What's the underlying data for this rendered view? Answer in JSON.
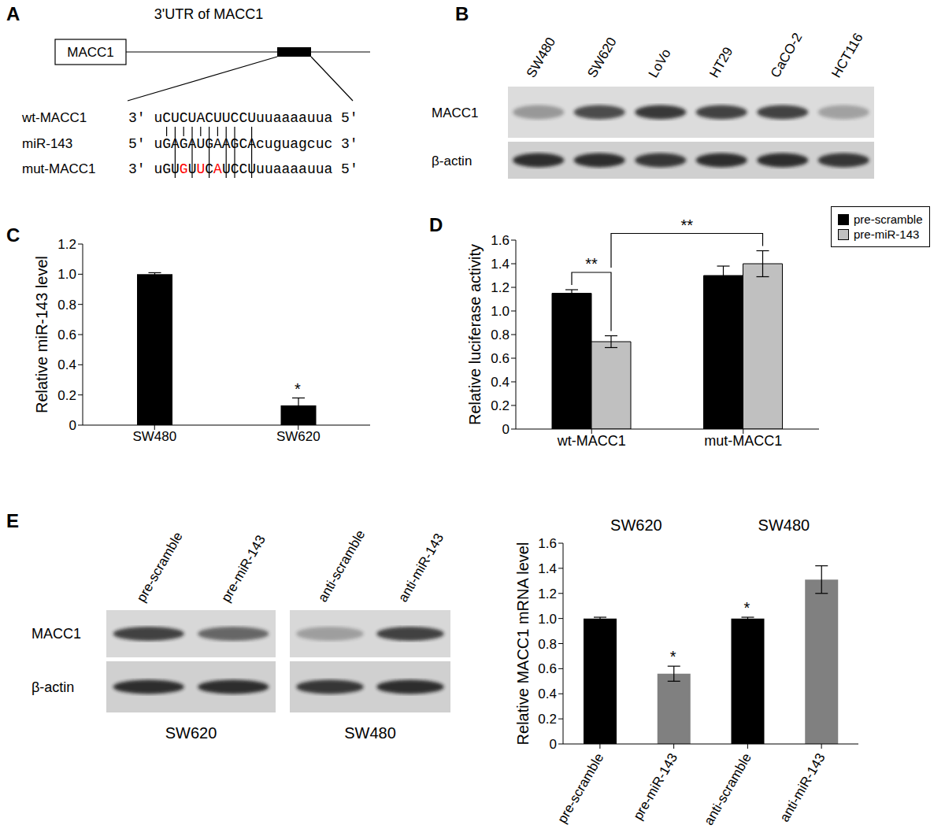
{
  "panel_letters": [
    "A",
    "B",
    "C",
    "D",
    "E"
  ],
  "panel_a": {
    "gene_box": "MACC1",
    "utr_label": "3'UTR of MACC1",
    "rows": [
      {
        "name": "wt-MACC1",
        "segments": [
          {
            "text": "3' uCUCUACUUCCUuuaaaauua 5'"
          }
        ]
      },
      {
        "name": "miR-143",
        "segments": [
          {
            "text": "5' uGAGAUGAAGCAcuguagcuc 3'"
          }
        ]
      },
      {
        "name": "mut-MACC1",
        "segments": [
          {
            "text": "3' uGU"
          },
          {
            "text": "G",
            "color": "#ff0000"
          },
          {
            "text": "U"
          },
          {
            "text": "U",
            "color": "#ff0000"
          },
          {
            "text": "C"
          },
          {
            "text": "A",
            "color": "#ff0000"
          },
          {
            "text": "UCCUuuaaaauua 5'"
          }
        ]
      }
    ]
  },
  "panel_b": {
    "lanes": [
      "SW480",
      "SW620",
      "LoVo",
      "HT29",
      "CaCO-2",
      "HCT116"
    ],
    "rows": [
      {
        "label": "MACC1",
        "intensity": [
          0.35,
          0.75,
          0.85,
          0.8,
          0.8,
          0.3
        ]
      },
      {
        "label": "β-actin",
        "intensity": [
          0.9,
          0.9,
          0.85,
          0.9,
          0.9,
          0.85
        ]
      }
    ]
  },
  "panel_e_blot": {
    "row_labels": [
      "MACC1",
      "β-actin"
    ],
    "groups": [
      {
        "name": "SW620",
        "lanes": [
          "pre-scramble",
          "pre-miR-143"
        ],
        "intensity": [
          [
            0.8,
            0.6
          ],
          [
            0.9,
            0.9
          ]
        ]
      },
      {
        "name": "SW480",
        "lanes": [
          "anti-scramble",
          "anti-miR-143"
        ],
        "intensity": [
          [
            0.3,
            0.8
          ],
          [
            0.85,
            0.9
          ]
        ]
      }
    ]
  },
  "chart_data": [
    {
      "type": "bar",
      "y_label": "Relative miR-143 level",
      "categories": [
        "SW480",
        "SW620"
      ],
      "values": [
        1.0,
        0.13
      ],
      "errors": [
        0.01,
        0.05
      ],
      "color": "#000000",
      "ylim": [
        0,
        1.2
      ],
      "yticks": [
        0,
        0.2,
        0.4,
        0.6,
        0.8,
        {
          "value": 1,
          "label": "1.0"
        },
        1.2
      ],
      "annotations": [
        {
          "category": "SW620",
          "text": "*"
        }
      ]
    },
    {
      "type": "bar",
      "y_label": "Relative luciferase activity",
      "categories": [
        "wt-MACC1",
        "mut-MACC1"
      ],
      "series": [
        {
          "name": "pre-scramble",
          "color": "#000000",
          "values": [
            1.15,
            1.3
          ],
          "errors": [
            0.03,
            0.08
          ]
        },
        {
          "name": "pre-miR-143",
          "color": "#c0c0c0",
          "values": [
            0.74,
            1.4
          ],
          "errors": [
            0.05,
            0.11
          ]
        }
      ],
      "ylim": [
        0,
        1.6
      ],
      "yticks": [
        0,
        0.2,
        0.4,
        0.6,
        0.8,
        {
          "value": 1,
          "label": "1.0"
        },
        1.2,
        1.4,
        1.6
      ],
      "legend": "upper right",
      "brackets": [
        {
          "text": "**",
          "from": {
            "category": "wt-MACC1",
            "series": "pre-scramble"
          },
          "to": {
            "category": "wt-MACC1",
            "series": "pre-miR-143"
          }
        },
        {
          "text": "**",
          "from": {
            "category": "wt-MACC1",
            "series": "pre-miR-143"
          },
          "to": {
            "category": "mut-MACC1",
            "series": "pre-miR-143"
          }
        }
      ]
    },
    {
      "type": "bar",
      "y_label": "Relative MACC1 mRNA level",
      "categories": [
        "pre-scramble",
        "pre-miR-143",
        "anti-scramble",
        "anti-miR-143"
      ],
      "values": [
        1.0,
        0.56,
        1.0,
        1.31
      ],
      "errors": [
        0.01,
        0.06,
        0.01,
        0.11
      ],
      "colors": [
        "#000000",
        "#808080",
        "#000000",
        "#808080"
      ],
      "ylim": [
        0,
        1.6
      ],
      "yticks": [
        0,
        0.2,
        0.4,
        0.6,
        0.8,
        {
          "value": 1,
          "label": "1.0"
        },
        1.2,
        1.4,
        1.6
      ],
      "group_labels": [
        {
          "text": "SW620",
          "categories": [
            "pre-scramble",
            "pre-miR-143"
          ]
        },
        {
          "text": "SW480",
          "categories": [
            "anti-scramble",
            "anti-miR-143"
          ]
        }
      ],
      "annotations": [
        {
          "category": "pre-miR-143",
          "text": "*"
        },
        {
          "category": "anti-scramble",
          "text": "*"
        }
      ]
    }
  ]
}
